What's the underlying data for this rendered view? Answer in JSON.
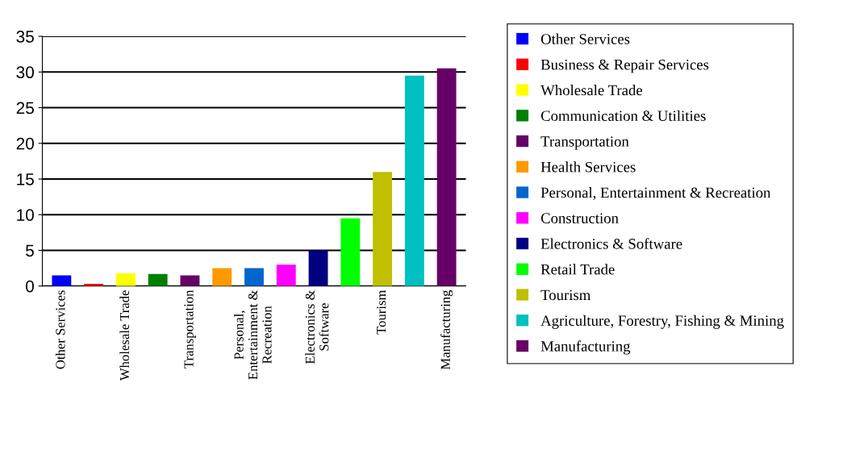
{
  "chart_data": {
    "type": "bar",
    "categories": [
      "Other Services",
      null,
      "Wholesale Trade",
      null,
      "Transportation",
      null,
      "Personal,\nEntertainment &\nRecreation",
      null,
      "Electronics &\nSoftware",
      null,
      "Tourism",
      null,
      "Manufacturing"
    ],
    "series": [
      {
        "name": "Other Services",
        "color": "#0000ff",
        "values": [
          1.5,
          null,
          null,
          null,
          null,
          null,
          null,
          null,
          null,
          null,
          null,
          null,
          null
        ]
      },
      {
        "name": "Business & Repair Services",
        "color": "#ff0000",
        "values": [
          null,
          0.3,
          null,
          null,
          null,
          null,
          null,
          null,
          null,
          null,
          null,
          null,
          null
        ]
      },
      {
        "name": "Wholesale Trade",
        "color": "#ffff00",
        "values": [
          null,
          null,
          1.8,
          null,
          null,
          null,
          null,
          null,
          null,
          null,
          null,
          null,
          null
        ]
      },
      {
        "name": "Communication & Utilities",
        "color": "#008000",
        "values": [
          null,
          null,
          null,
          1.7,
          null,
          null,
          null,
          null,
          null,
          null,
          null,
          null,
          null
        ]
      },
      {
        "name": "Transportation",
        "color": "#660066",
        "values": [
          null,
          null,
          null,
          null,
          1.5,
          null,
          null,
          null,
          null,
          null,
          null,
          null,
          null
        ]
      },
      {
        "name": "Health Services",
        "color": "#ff9900",
        "values": [
          null,
          null,
          null,
          null,
          null,
          2.5,
          null,
          null,
          null,
          null,
          null,
          null,
          null
        ]
      },
      {
        "name": "Personal, Entertainment & Recreation",
        "color": "#0066cc",
        "values": [
          null,
          null,
          null,
          null,
          null,
          null,
          2.5,
          null,
          null,
          null,
          null,
          null,
          null
        ]
      },
      {
        "name": "Construction",
        "color": "#ff00ff",
        "values": [
          null,
          null,
          null,
          null,
          null,
          null,
          null,
          3,
          null,
          null,
          null,
          null,
          null
        ]
      },
      {
        "name": "Electronics & Software",
        "color": "#000080",
        "values": [
          null,
          null,
          null,
          null,
          null,
          null,
          null,
          null,
          5,
          null,
          null,
          null,
          null
        ]
      },
      {
        "name": "Retail Trade",
        "color": "#00ff00",
        "values": [
          null,
          null,
          null,
          null,
          null,
          null,
          null,
          null,
          null,
          9.5,
          null,
          null,
          null
        ]
      },
      {
        "name": "Tourism",
        "color": "#c0c000",
        "values": [
          null,
          null,
          null,
          null,
          null,
          null,
          null,
          null,
          null,
          null,
          16,
          null,
          null
        ]
      },
      {
        "name": "Agriculture, Forestry, Fishing & Mining",
        "color": "#00c0c0",
        "values": [
          null,
          null,
          null,
          null,
          null,
          null,
          null,
          null,
          null,
          null,
          null,
          29.5,
          null
        ]
      },
      {
        "name": "Manufacturing",
        "color": "#660066",
        "values": [
          null,
          null,
          null,
          null,
          null,
          null,
          null,
          null,
          null,
          null,
          null,
          null,
          30.5
        ]
      }
    ],
    "ylim": [
      0,
      35
    ],
    "yticks": [
      0,
      5,
      10,
      15,
      20,
      25,
      30,
      35
    ],
    "grid": "y",
    "legend": "right"
  }
}
